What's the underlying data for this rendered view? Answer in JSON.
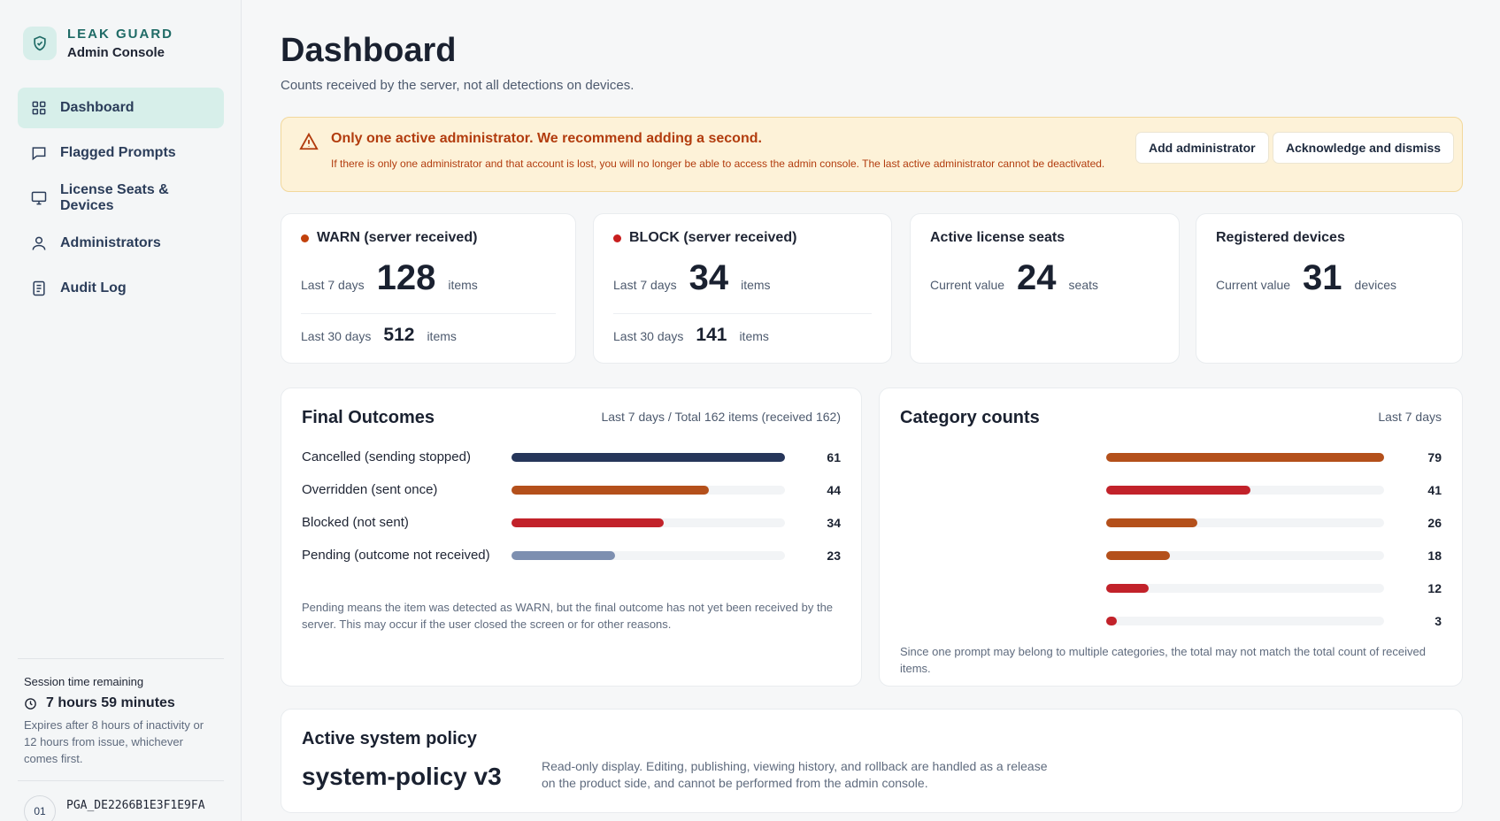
{
  "sidebar": {
    "brand_name": "LEAK GUARD",
    "brand_sub": "Admin Console",
    "items": [
      {
        "label": "Dashboard",
        "icon": "grid-icon",
        "active": true
      },
      {
        "label": "Flagged Prompts",
        "icon": "chat-icon",
        "active": false
      },
      {
        "label": "License Seats & Devices",
        "icon": "monitor-icon",
        "active": false
      },
      {
        "label": "Administrators",
        "icon": "user-icon",
        "active": false
      },
      {
        "label": "Audit Log",
        "icon": "document-icon",
        "active": false
      }
    ],
    "session_label": "Session time remaining",
    "session_time": "7 hours 59 minutes",
    "session_note": "Expires after 8 hours of inactivity or 12 hours from issue, whichever comes first.",
    "device_num": "01",
    "device_id": "PGA_DE2266B1E3F1E9FA"
  },
  "header": {
    "title": "Dashboard",
    "subtitle": "Counts received by the server, not all detections on devices."
  },
  "alert": {
    "title": "Only one active administrator. We recommend adding a second.",
    "body": "If there is only one administrator and that account is lost, you will no longer be able to access the admin console. The last active administrator cannot be deactivated.",
    "add_label": "Add administrator",
    "dismiss_label": "Acknowledge and dismiss"
  },
  "stats": {
    "warn": {
      "title": "WARN (server received)",
      "color": "#c2410c",
      "l7_label": "Last 7 days",
      "l7_value": "128",
      "l7_unit": "items",
      "l30_label": "Last 30 days",
      "l30_value": "512",
      "l30_unit": "items"
    },
    "block": {
      "title": "BLOCK (server received)",
      "color": "#c81e1e",
      "l7_label": "Last 7 days",
      "l7_value": "34",
      "l7_unit": "items",
      "l30_label": "Last 30 days",
      "l30_value": "141",
      "l30_unit": "items"
    },
    "seats": {
      "title": "Active license seats",
      "label": "Current value",
      "value": "24",
      "unit": "seats"
    },
    "devices": {
      "title": "Registered devices",
      "label": "Current value",
      "value": "31",
      "unit": "devices"
    }
  },
  "outcomes": {
    "title": "Final  Outcomes",
    "meta": "Last 7 days / Total 162 items (received 162)",
    "max": 61,
    "rows": [
      {
        "label": "Cancelled (sending stopped)",
        "value": 61,
        "color": "#26365a"
      },
      {
        "label": "Overridden (sent once)",
        "value": 44,
        "color": "#b4501b"
      },
      {
        "label": "Blocked (not sent)",
        "value": 34,
        "color": "#c2222a"
      },
      {
        "label": "Pending (outcome not received)",
        "value": 23,
        "color": "#7d8fb0"
      }
    ],
    "note": "Pending means the item was detected as WARN, but the final outcome has not yet been received by the server. This may occur if the user closed the screen or for other reasons."
  },
  "categories": {
    "title": "Category counts",
    "meta": "Last 7 days",
    "max": 79,
    "rows": [
      {
        "value": 79,
        "color": "#b4501b"
      },
      {
        "value": 41,
        "color": "#c2222a"
      },
      {
        "value": 26,
        "color": "#b4501b"
      },
      {
        "value": 18,
        "color": "#b4501b"
      },
      {
        "value": 12,
        "color": "#c2222a"
      },
      {
        "value": 3,
        "color": "#c2222a"
      }
    ],
    "note": "Since one prompt may belong to multiple categories, the total may not match the total count of received items."
  },
  "policy": {
    "title": "Active system policy",
    "name": "system-policy v3",
    "note": "Read-only display. Editing, publishing, viewing history, and rollback are handled as a release on the product side, and cannot be performed from the admin console."
  }
}
